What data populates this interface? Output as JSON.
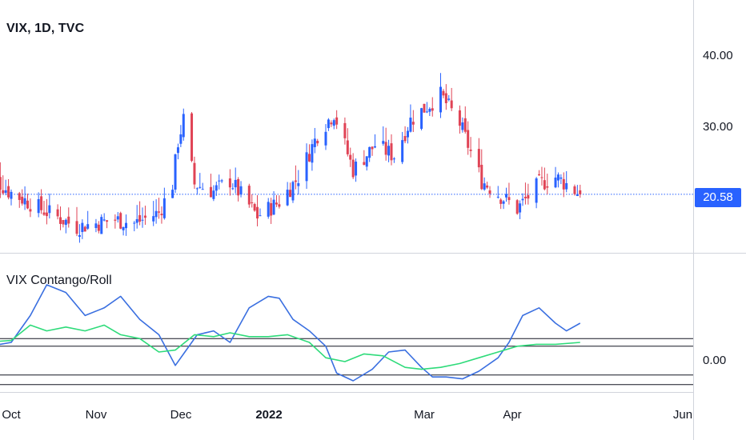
{
  "symbol_title": "VIX, 1D, TVC",
  "indicator_title": "VIX Contango/Roll",
  "current_price_label": "20.58",
  "price_axis_labels": [
    "40.00",
    "30.00"
  ],
  "indicator_axis_labels": [
    "0.00"
  ],
  "time_axis_labels": [
    {
      "label": "Oct",
      "bold": false
    },
    {
      "label": "Nov",
      "bold": false
    },
    {
      "label": "Dec",
      "bold": false
    },
    {
      "label": "2022",
      "bold": true
    },
    {
      "label": "Mar",
      "bold": false
    },
    {
      "label": "Apr",
      "bold": false
    },
    {
      "label": "Jun",
      "bold": false
    }
  ],
  "colors": {
    "up": "#2962ff",
    "down": "#e04355",
    "blue_line": "#3a6fe0",
    "green_line": "#2edb7a",
    "price_tag": "#2962ff",
    "level_lines": "#131722"
  },
  "chart_data": [
    {
      "type": "candlestick",
      "title": "VIX, 1D, TVC",
      "ylim": [
        14,
        46
      ],
      "last_price": 20.58,
      "anchors": [
        {
          "date": "2021-09-20",
          "close": 24.5
        },
        {
          "date": "2021-09-30",
          "close": 21.0
        },
        {
          "date": "2021-10-12",
          "close": 18.5
        },
        {
          "date": "2021-10-25",
          "close": 16.0
        },
        {
          "date": "2021-11-08",
          "close": 17.0
        },
        {
          "date": "2021-11-15",
          "close": 16.5
        },
        {
          "date": "2021-11-24",
          "close": 18.0
        },
        {
          "date": "2021-11-29",
          "close": 22.0
        },
        {
          "date": "2021-12-01",
          "close": 28.0
        },
        {
          "date": "2021-12-03",
          "close": 31.0
        },
        {
          "date": "2021-12-07",
          "close": 22.0
        },
        {
          "date": "2021-12-14",
          "close": 21.0
        },
        {
          "date": "2021-12-20",
          "close": 22.5
        },
        {
          "date": "2021-12-30",
          "close": 17.5
        },
        {
          "date": "2022-01-07",
          "close": 19.5
        },
        {
          "date": "2022-01-14",
          "close": 23.0
        },
        {
          "date": "2022-01-21",
          "close": 29.0
        },
        {
          "date": "2022-01-27",
          "close": 32.0
        },
        {
          "date": "2022-02-03",
          "close": 24.0
        },
        {
          "date": "2022-02-11",
          "close": 27.5
        },
        {
          "date": "2022-02-18",
          "close": 26.0
        },
        {
          "date": "2022-02-24",
          "close": 31.0
        },
        {
          "date": "2022-03-07",
          "close": 34.5
        },
        {
          "date": "2022-03-14",
          "close": 30.5
        },
        {
          "date": "2022-03-22",
          "close": 22.5
        },
        {
          "date": "2022-04-04",
          "close": 18.5
        },
        {
          "date": "2022-04-12",
          "close": 22.0
        },
        {
          "date": "2022-04-18",
          "close": 23.0
        },
        {
          "date": "2022-04-22",
          "close": 22.0
        },
        {
          "date": "2022-04-27",
          "close": 20.58
        }
      ]
    },
    {
      "type": "line",
      "title": "VIX Contango/Roll",
      "series": [
        {
          "color": "blue",
          "x": [
            "2021-09-20",
            "2021-09-27",
            "2021-10-01",
            "2021-10-08",
            "2021-10-14",
            "2021-10-21",
            "2021-10-28",
            "2021-11-04",
            "2021-11-10",
            "2021-11-17",
            "2021-11-24",
            "2021-11-30",
            "2021-12-03",
            "2021-12-08",
            "2021-12-14",
            "2021-12-20",
            "2021-12-27",
            "2022-01-03",
            "2022-01-07",
            "2022-01-12",
            "2022-01-18",
            "2022-01-24",
            "2022-01-28",
            "2022-02-03",
            "2022-02-10",
            "2022-02-16",
            "2022-02-22",
            "2022-02-28",
            "2022-03-04",
            "2022-03-09",
            "2022-03-15",
            "2022-03-21",
            "2022-03-28",
            "2022-04-01",
            "2022-04-06",
            "2022-04-12",
            "2022-04-18",
            "2022-04-22",
            "2022-04-27"
          ],
          "values": [
            1.2,
            0.9,
            1.0,
            2.4,
            4.0,
            3.6,
            2.4,
            2.8,
            3.4,
            2.2,
            1.4,
            -0.2,
            0.4,
            1.4,
            1.6,
            1.0,
            2.8,
            3.4,
            3.3,
            2.2,
            1.6,
            0.8,
            -0.6,
            -1.0,
            -0.4,
            0.5,
            0.6,
            -0.3,
            -0.8,
            -0.8,
            -0.9,
            -0.5,
            0.2,
            1.0,
            2.4,
            2.8,
            2.0,
            1.6,
            2.0
          ]
        },
        {
          "color": "green",
          "x": [
            "2021-09-20",
            "2021-10-01",
            "2021-10-08",
            "2021-10-14",
            "2021-10-21",
            "2021-10-28",
            "2021-11-04",
            "2021-11-10",
            "2021-11-17",
            "2021-11-24",
            "2021-11-30",
            "2021-12-07",
            "2021-12-14",
            "2021-12-20",
            "2021-12-27",
            "2022-01-03",
            "2022-01-10",
            "2022-01-18",
            "2022-01-24",
            "2022-01-31",
            "2022-02-07",
            "2022-02-14",
            "2022-02-22",
            "2022-02-28",
            "2022-03-07",
            "2022-03-14",
            "2022-03-21",
            "2022-03-28",
            "2022-04-04",
            "2022-04-11",
            "2022-04-18",
            "2022-04-27"
          ],
          "values": [
            1.0,
            1.1,
            1.9,
            1.6,
            1.8,
            1.6,
            1.9,
            1.4,
            1.2,
            0.5,
            0.6,
            1.4,
            1.3,
            1.5,
            1.3,
            1.3,
            1.4,
            1.0,
            0.2,
            0.0,
            0.4,
            0.3,
            -0.3,
            -0.4,
            -0.3,
            -0.1,
            0.2,
            0.5,
            0.8,
            0.9,
            0.9,
            1.0
          ]
        }
      ],
      "levels": [
        1.2,
        0.8,
        -0.7,
        -1.2
      ],
      "ylim": [
        -1.6,
        4.0
      ],
      "zero_label": "0.00"
    }
  ]
}
